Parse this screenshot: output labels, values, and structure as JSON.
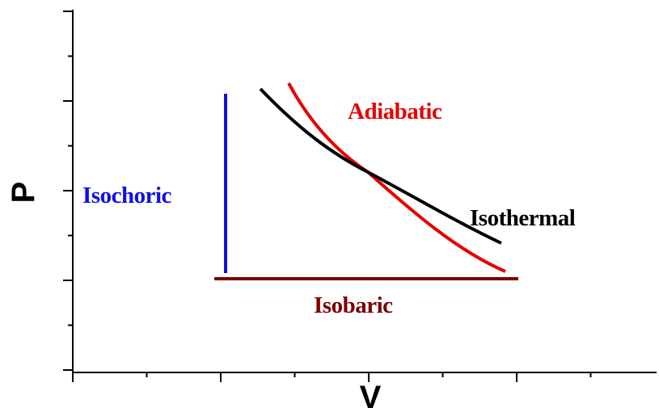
{
  "axes": {
    "x_label": "V",
    "y_label": "P"
  },
  "processes": [
    {
      "key": "isochoric",
      "label": "Isochoric",
      "color": "#1010e6"
    },
    {
      "key": "isobaric",
      "label": "Isobaric",
      "color": "#7a0000"
    },
    {
      "key": "adiabatic",
      "label": "Adiabatic",
      "color": "#e60000"
    },
    {
      "key": "isothermal",
      "label": "Isothermal",
      "color": "#000000"
    }
  ],
  "colors": {
    "axis": "#000000",
    "background": "#ffffff"
  }
}
